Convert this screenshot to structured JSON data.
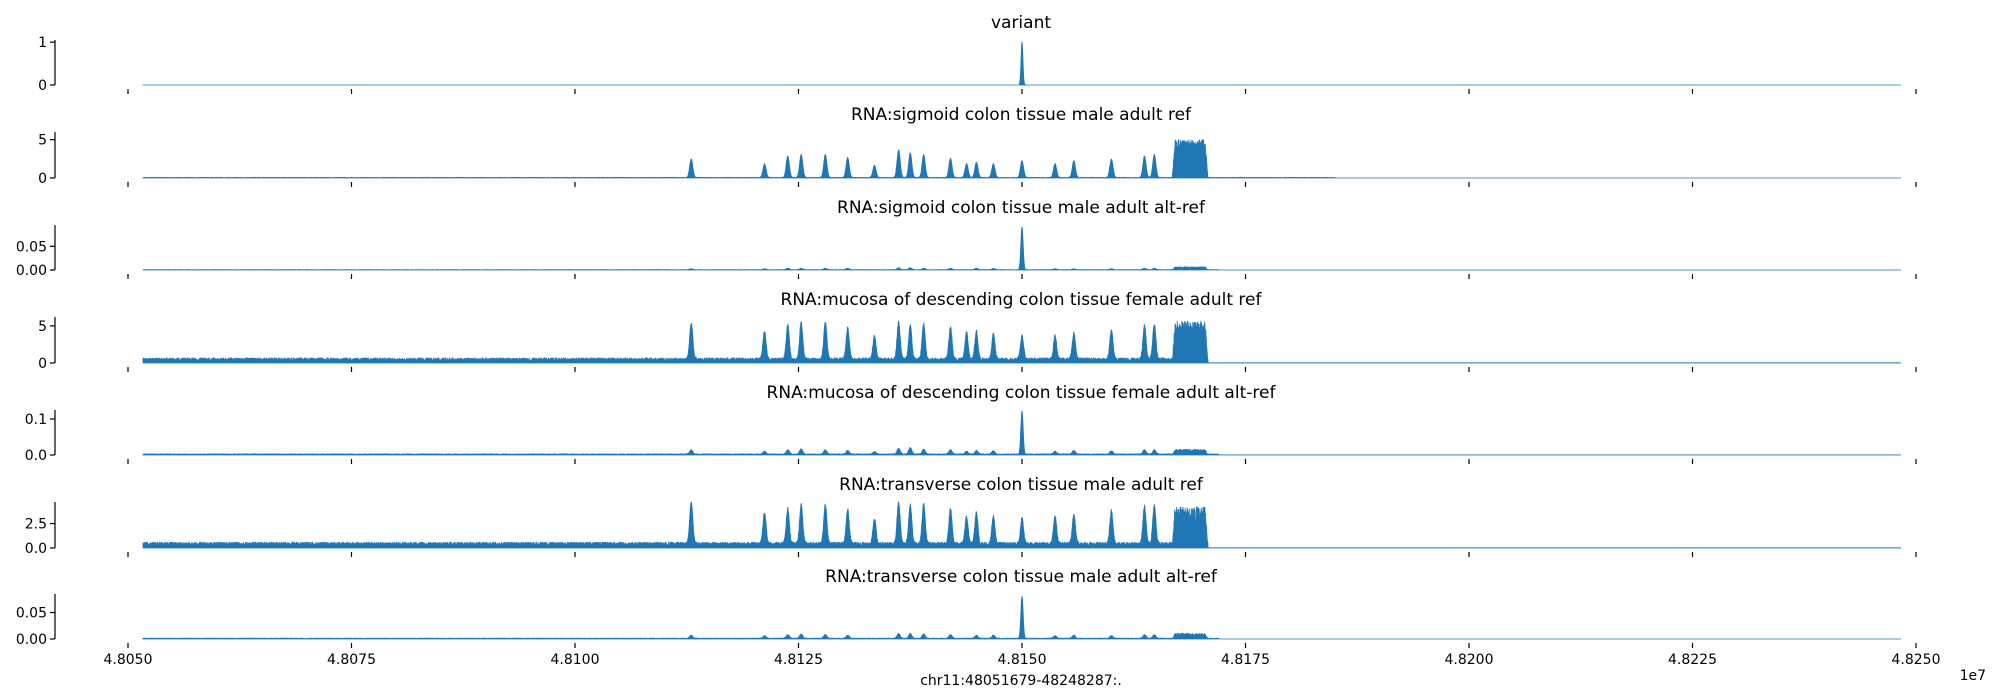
{
  "chart_data": {
    "type": "area",
    "xlabel": "chr11:48051679-48248287:.",
    "x_offset_label": "1e7",
    "x_ticks": [
      "4.8050",
      "4.8075",
      "4.8100",
      "4.8125",
      "4.8150",
      "4.8175",
      "4.8200",
      "4.8225",
      "4.8250"
    ],
    "xlim": [
      48050000,
      48250000
    ],
    "data_range": [
      48051679,
      48248287
    ],
    "color": "#1f77b4",
    "series": [
      {
        "name": "variant",
        "ylim": [
          0,
          1.05
        ],
        "yticks": [
          {
            "v": 0,
            "label": "0"
          },
          {
            "v": 1,
            "label": "1"
          }
        ],
        "baseline": 0,
        "noise": 0,
        "signal_end": 48150400,
        "peaks": [
          [
            48150000,
            1.0,
            150
          ]
        ],
        "block": null
      },
      {
        "name": "RNA:sigmoid colon tissue male adult ref",
        "ylim": [
          0,
          6
        ],
        "yticks": [
          {
            "v": 0,
            "label": "0"
          },
          {
            "v": 5,
            "label": "5"
          }
        ],
        "baseline": 0.05,
        "noise": 0.04,
        "signal_end": 48185000,
        "peaks": [
          [
            48113000,
            2.4,
            250
          ],
          [
            48121200,
            1.8,
            250
          ],
          [
            48123800,
            2.8,
            250
          ],
          [
            48125300,
            3.0,
            250
          ],
          [
            48128000,
            3.0,
            250
          ],
          [
            48130500,
            2.6,
            250
          ],
          [
            48133500,
            1.6,
            250
          ],
          [
            48136200,
            3.6,
            250
          ],
          [
            48137500,
            3.2,
            250
          ],
          [
            48139000,
            3.0,
            250
          ],
          [
            48142000,
            2.5,
            250
          ],
          [
            48143800,
            1.8,
            250
          ],
          [
            48144900,
            2.0,
            250
          ],
          [
            48146800,
            1.8,
            250
          ],
          [
            48150000,
            2.2,
            250
          ],
          [
            48153700,
            1.8,
            250
          ],
          [
            48155800,
            2.2,
            250
          ],
          [
            48160000,
            2.4,
            250
          ],
          [
            48163700,
            2.8,
            250
          ],
          [
            48164800,
            3.0,
            250
          ]
        ],
        "block": [
          48166800,
          48170800,
          4.3,
          0.7
        ]
      },
      {
        "name": "RNA:sigmoid colon tissue male adult alt-ref",
        "ylim": [
          0,
          0.095
        ],
        "yticks": [
          {
            "v": 0,
            "label": "0.00"
          },
          {
            "v": 0.05,
            "label": "0.05"
          }
        ],
        "baseline": 0.0005,
        "noise": 0.0005,
        "signal_end": 48172000,
        "peaks": [
          [
            48150000,
            0.09,
            180
          ],
          [
            48113000,
            0.002,
            250
          ],
          [
            48121200,
            0.002,
            250
          ],
          [
            48123800,
            0.003,
            250
          ],
          [
            48125300,
            0.003,
            250
          ],
          [
            48128000,
            0.003,
            250
          ],
          [
            48130500,
            0.003,
            250
          ],
          [
            48136200,
            0.004,
            250
          ],
          [
            48137500,
            0.004,
            250
          ],
          [
            48139000,
            0.003,
            250
          ],
          [
            48142000,
            0.003,
            250
          ],
          [
            48144900,
            0.003,
            250
          ],
          [
            48146800,
            0.003,
            250
          ],
          [
            48153700,
            0.002,
            250
          ],
          [
            48155800,
            0.002,
            250
          ],
          [
            48160000,
            0.002,
            250
          ],
          [
            48163700,
            0.003,
            250
          ],
          [
            48164800,
            0.003,
            250
          ]
        ],
        "block": [
          48166800,
          48170800,
          0.005,
          0.002
        ]
      },
      {
        "name": "RNA:mucosa of descending colon tissue female adult ref",
        "ylim": [
          0,
          6.2
        ],
        "yticks": [
          {
            "v": 0,
            "label": "0"
          },
          {
            "v": 5,
            "label": "5"
          }
        ],
        "baseline": 0.45,
        "noise": 0.25,
        "signal_end": 48170800,
        "peaks": [
          [
            48113000,
            5.0,
            250
          ],
          [
            48121200,
            3.8,
            250
          ],
          [
            48123800,
            4.6,
            250
          ],
          [
            48125300,
            5.0,
            250
          ],
          [
            48128000,
            5.0,
            250
          ],
          [
            48130500,
            4.2,
            250
          ],
          [
            48133500,
            3.2,
            250
          ],
          [
            48136200,
            5.0,
            250
          ],
          [
            48137500,
            4.6,
            250
          ],
          [
            48139000,
            4.8,
            250
          ],
          [
            48142000,
            4.4,
            250
          ],
          [
            48143800,
            3.6,
            250
          ],
          [
            48144900,
            3.8,
            250
          ],
          [
            48146800,
            3.4,
            250
          ],
          [
            48150000,
            3.2,
            250
          ],
          [
            48153700,
            3.2,
            250
          ],
          [
            48155800,
            3.6,
            250
          ],
          [
            48160000,
            4.0,
            250
          ],
          [
            48163700,
            4.6,
            250
          ],
          [
            48164800,
            4.8,
            250
          ]
        ],
        "block": [
          48166800,
          48170800,
          4.6,
          1.1
        ]
      },
      {
        "name": "RNA:mucosa of descending colon tissue female adult alt-ref",
        "ylim": [
          0,
          0.125
        ],
        "yticks": [
          {
            "v": 0,
            "label": "0.0"
          },
          {
            "v": 0.1,
            "label": "0.1"
          }
        ],
        "baseline": 0.002,
        "noise": 0.0015,
        "signal_end": 48172000,
        "peaks": [
          [
            48150000,
            0.12,
            180
          ],
          [
            48113000,
            0.012,
            250
          ],
          [
            48121200,
            0.008,
            250
          ],
          [
            48123800,
            0.012,
            250
          ],
          [
            48125300,
            0.014,
            250
          ],
          [
            48128000,
            0.012,
            250
          ],
          [
            48130500,
            0.01,
            250
          ],
          [
            48133500,
            0.007,
            250
          ],
          [
            48136200,
            0.016,
            250
          ],
          [
            48137500,
            0.018,
            250
          ],
          [
            48139000,
            0.013,
            250
          ],
          [
            48142000,
            0.012,
            250
          ],
          [
            48143800,
            0.008,
            250
          ],
          [
            48144900,
            0.01,
            250
          ],
          [
            48146800,
            0.009,
            250
          ],
          [
            48153700,
            0.008,
            250
          ],
          [
            48155800,
            0.01,
            250
          ],
          [
            48160000,
            0.009,
            250
          ],
          [
            48163700,
            0.012,
            250
          ],
          [
            48164800,
            0.012,
            250
          ]
        ],
        "block": [
          48166800,
          48170800,
          0.012,
          0.004
        ]
      },
      {
        "name": "RNA:transverse colon tissue male adult ref",
        "ylim": [
          0,
          4.7
        ],
        "yticks": [
          {
            "v": 0,
            "label": "0.0"
          },
          {
            "v": 2.5,
            "label": "2.5"
          }
        ],
        "baseline": 0.4,
        "noise": 0.2,
        "signal_end": 48170800,
        "peaks": [
          [
            48113000,
            4.2,
            250
          ],
          [
            48121200,
            3.2,
            250
          ],
          [
            48123800,
            3.6,
            250
          ],
          [
            48125300,
            4.0,
            250
          ],
          [
            48128000,
            4.0,
            250
          ],
          [
            48130500,
            3.5,
            250
          ],
          [
            48133500,
            2.6,
            250
          ],
          [
            48136200,
            4.2,
            250
          ],
          [
            48137500,
            4.0,
            250
          ],
          [
            48139000,
            4.1,
            250
          ],
          [
            48142000,
            3.6,
            250
          ],
          [
            48143800,
            2.8,
            250
          ],
          [
            48144900,
            3.2,
            250
          ],
          [
            48146800,
            2.8,
            250
          ],
          [
            48150000,
            2.6,
            250
          ],
          [
            48153700,
            2.8,
            250
          ],
          [
            48155800,
            3.0,
            250
          ],
          [
            48160000,
            3.4,
            250
          ],
          [
            48163700,
            3.8,
            250
          ],
          [
            48164800,
            4.0,
            250
          ]
        ],
        "block": [
          48166800,
          48170800,
          3.4,
          0.8
        ]
      },
      {
        "name": "RNA:transverse colon tissue male adult alt-ref",
        "ylim": [
          0,
          0.085
        ],
        "yticks": [
          {
            "v": 0,
            "label": "0.00"
          },
          {
            "v": 0.05,
            "label": "0.05"
          }
        ],
        "baseline": 0.001,
        "noise": 0.0008,
        "signal_end": 48172000,
        "peaks": [
          [
            48150000,
            0.08,
            180
          ],
          [
            48113000,
            0.006,
            250
          ],
          [
            48121200,
            0.005,
            250
          ],
          [
            48123800,
            0.007,
            250
          ],
          [
            48125300,
            0.008,
            250
          ],
          [
            48128000,
            0.007,
            250
          ],
          [
            48130500,
            0.006,
            250
          ],
          [
            48136200,
            0.009,
            250
          ],
          [
            48137500,
            0.009,
            250
          ],
          [
            48139000,
            0.008,
            250
          ],
          [
            48142000,
            0.007,
            250
          ],
          [
            48144900,
            0.006,
            250
          ],
          [
            48146800,
            0.006,
            250
          ],
          [
            48153700,
            0.005,
            250
          ],
          [
            48155800,
            0.006,
            250
          ],
          [
            48160000,
            0.005,
            250
          ],
          [
            48163700,
            0.007,
            250
          ],
          [
            48164800,
            0.007,
            250
          ]
        ],
        "block": [
          48166800,
          48170800,
          0.008,
          0.003
        ]
      }
    ]
  }
}
